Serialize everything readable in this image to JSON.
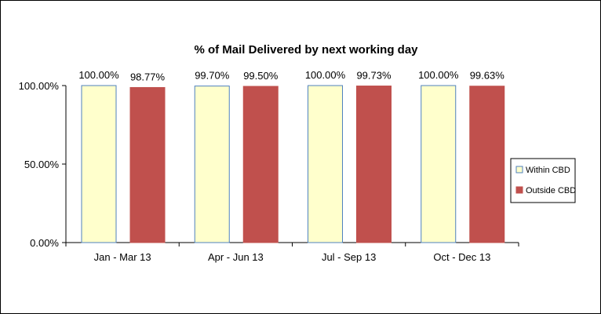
{
  "chart_data": {
    "type": "bar",
    "title": "% of Mail Delivered by next working day",
    "xlabel": "",
    "ylabel": "",
    "categories": [
      "Jan - Mar 13",
      "Apr - Jun 13",
      "Jul - Sep 13",
      "Oct - Dec 13"
    ],
    "series": [
      {
        "name": "Within CBD",
        "values": [
          100.0,
          99.7,
          100.0,
          100.0
        ],
        "labels": [
          "100.00%",
          "99.70%",
          "100.00%",
          "100.00%"
        ],
        "color": "#ffffcc",
        "border": "#4f81bd"
      },
      {
        "name": "Outside CBD",
        "values": [
          98.77,
          99.5,
          99.73,
          99.63
        ],
        "labels": [
          "98.77%",
          "99.50%",
          "99.73%",
          "99.63%"
        ],
        "color": "#c0504d",
        "border": "#c0504d"
      }
    ],
    "ylim": [
      0,
      100
    ],
    "yticks": [
      {
        "value": 0,
        "label": "0.00%"
      },
      {
        "value": 50,
        "label": "50.00%"
      },
      {
        "value": 100,
        "label": "100.00%"
      }
    ],
    "grid": false,
    "legend_position": "right"
  }
}
